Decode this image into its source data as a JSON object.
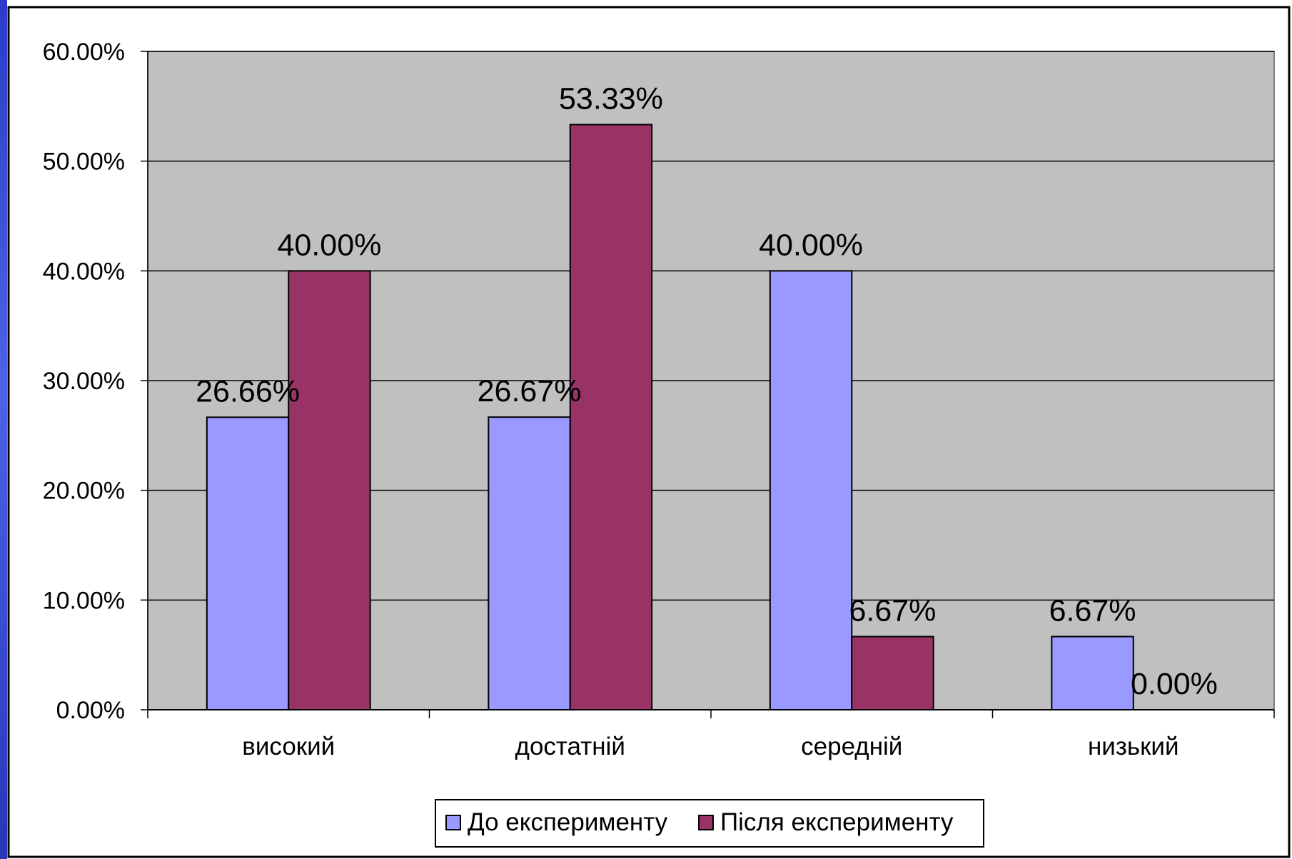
{
  "chart_data": {
    "type": "bar",
    "title": "",
    "xlabel": "",
    "ylabel": "",
    "categories": [
      "високий",
      "достатній",
      "середній",
      "низький"
    ],
    "series": [
      {
        "name": "До експерименту",
        "color": "#9999ff",
        "values": [
          26.66,
          26.67,
          40.0,
          6.67
        ],
        "labels": [
          "26.66%",
          "26.67%",
          "40.00%",
          "6.67%"
        ]
      },
      {
        "name": "Після експерименту",
        "color": "#993366",
        "values": [
          40.0,
          53.33,
          6.67,
          0.0
        ],
        "labels": [
          "40.00%",
          "53.33%",
          "6.67%",
          "0.00%"
        ]
      }
    ],
    "ylim": [
      0,
      60
    ],
    "yticks": [
      0,
      10,
      20,
      30,
      40,
      50,
      60
    ],
    "ytick_labels": [
      "0.00%",
      "10.00%",
      "20.00%",
      "30.00%",
      "40.00%",
      "50.00%",
      "60.00%"
    ],
    "grid": true,
    "plot_background": "#c0c0c0",
    "legend_position": "bottom"
  }
}
